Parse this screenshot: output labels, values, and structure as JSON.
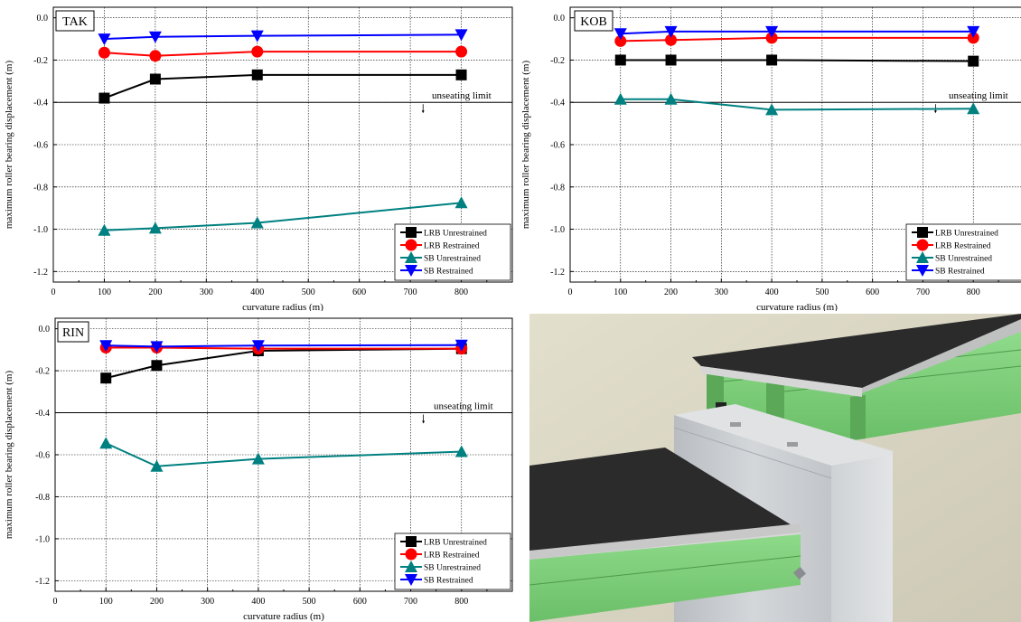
{
  "chart_data": [
    {
      "type": "line",
      "panel_label": "TAK",
      "xlabel": "curvature radius (m)",
      "ylabel": "maximum roller bearing displacement (m)",
      "xlim": [
        0,
        900
      ],
      "ylim": [
        -1.25,
        0.05
      ],
      "xticks": [
        0,
        100,
        200,
        300,
        400,
        500,
        600,
        700,
        800
      ],
      "yticks": [
        0.0,
        -0.2,
        -0.4,
        -0.6,
        -0.8,
        -1.0,
        -1.2
      ],
      "ytick_labels": [
        "0.0",
        "-0.2",
        "-0.4",
        "-0.6",
        "-0.8",
        "-1.0",
        "-1.2"
      ],
      "grid": true,
      "legend_position": "bottom-right",
      "annotation": {
        "text": "unseating limit",
        "y": -0.4
      },
      "x": [
        100,
        200,
        400,
        800
      ],
      "series": [
        {
          "name": "LRB Unrestrained",
          "color": "#000000",
          "marker": "square",
          "values": [
            -0.38,
            -0.29,
            -0.27,
            -0.27
          ]
        },
        {
          "name": "LRB Restrained",
          "color": "#ff0000",
          "marker": "circle",
          "values": [
            -0.165,
            -0.18,
            -0.16,
            -0.16
          ]
        },
        {
          "name": "SB Unrestrained",
          "color": "#008080",
          "marker": "triangle-up",
          "values": [
            -1.005,
            -0.995,
            -0.97,
            -0.875
          ]
        },
        {
          "name": "SB Restrained",
          "color": "#0000ff",
          "marker": "triangle-down",
          "values": [
            -0.1,
            -0.09,
            -0.085,
            -0.08
          ]
        }
      ]
    },
    {
      "type": "line",
      "panel_label": "KOB",
      "xlabel": "curvature radius (m)",
      "ylabel": "maximum roller bearing displacement (m)",
      "xlim": [
        0,
        900
      ],
      "ylim": [
        -1.25,
        0.05
      ],
      "xticks": [
        0,
        100,
        200,
        300,
        400,
        500,
        600,
        700,
        800
      ],
      "yticks": [
        0.0,
        -0.2,
        -0.4,
        -0.6,
        -0.8,
        -1.0,
        -1.2
      ],
      "ytick_labels": [
        "0.0",
        "-0.2",
        "-0.4",
        "-0.6",
        "-0.8",
        "-1.0",
        "-1.2"
      ],
      "grid": true,
      "legend_position": "bottom-right",
      "annotation": {
        "text": "unseating limit",
        "y": -0.4
      },
      "x": [
        100,
        200,
        400,
        800
      ],
      "series": [
        {
          "name": "LRB Unrestrained",
          "color": "#000000",
          "marker": "square",
          "values": [
            -0.2,
            -0.2,
            -0.2,
            -0.205
          ]
        },
        {
          "name": "LRB Restrained",
          "color": "#ff0000",
          "marker": "circle",
          "values": [
            -0.11,
            -0.105,
            -0.095,
            -0.095
          ]
        },
        {
          "name": "SB Unrestrained",
          "color": "#008080",
          "marker": "triangle-up",
          "values": [
            -0.385,
            -0.385,
            -0.435,
            -0.43
          ]
        },
        {
          "name": "SB Restrained",
          "color": "#0000ff",
          "marker": "triangle-down",
          "values": [
            -0.075,
            -0.065,
            -0.065,
            -0.065
          ]
        }
      ]
    },
    {
      "type": "line",
      "panel_label": "RIN",
      "xlabel": "curvature radius (m)",
      "ylabel": "maximum roller bearing displacement (m)",
      "xlim": [
        0,
        900
      ],
      "ylim": [
        -1.25,
        0.05
      ],
      "xticks": [
        0,
        100,
        200,
        300,
        400,
        500,
        600,
        700,
        800
      ],
      "yticks": [
        0.0,
        -0.2,
        -0.4,
        -0.6,
        -0.8,
        -1.0,
        -1.2
      ],
      "ytick_labels": [
        "0.0",
        "-0.2",
        "-0.4",
        "-0.6",
        "-0.8",
        "-1.0",
        "-1.2"
      ],
      "grid": true,
      "legend_position": "bottom-right",
      "annotation": {
        "text": "unseating limit",
        "y": -0.4
      },
      "x": [
        100,
        200,
        400,
        800
      ],
      "series": [
        {
          "name": "LRB Unrestrained",
          "color": "#000000",
          "marker": "square",
          "values": [
            -0.235,
            -0.175,
            -0.105,
            -0.095
          ]
        },
        {
          "name": "LRB Restrained",
          "color": "#ff0000",
          "marker": "circle",
          "values": [
            -0.09,
            -0.09,
            -0.095,
            -0.095
          ]
        },
        {
          "name": "SB Unrestrained",
          "color": "#008080",
          "marker": "triangle-up",
          "values": [
            -0.545,
            -0.655,
            -0.62,
            -0.585
          ]
        },
        {
          "name": "SB Restrained",
          "color": "#0000ff",
          "marker": "triangle-down",
          "values": [
            -0.08,
            -0.085,
            -0.08,
            -0.078
          ]
        }
      ]
    }
  ],
  "illustration": {
    "colors": {
      "deck": "#2e2e2e",
      "girder": "#7fd17c",
      "girder_dark": "#5aa858",
      "pier": "#c9ccd0",
      "background": "#dcd8c6"
    }
  }
}
